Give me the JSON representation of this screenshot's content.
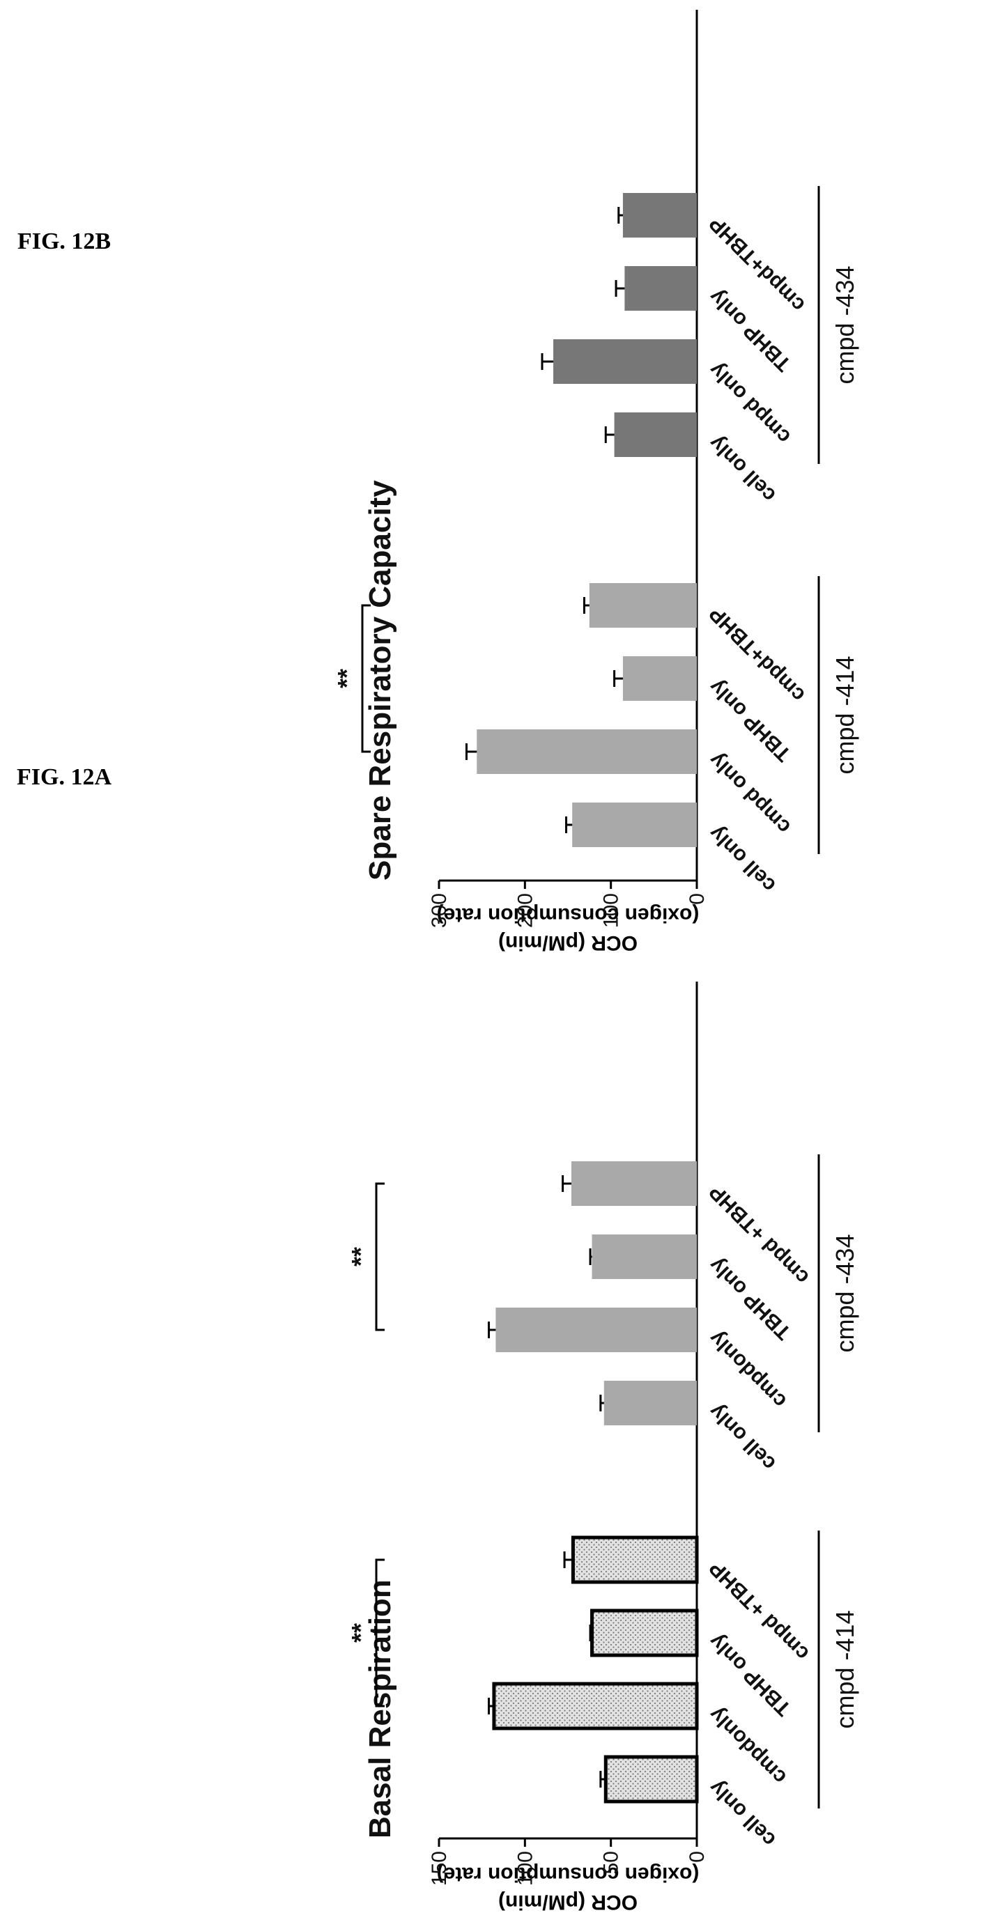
{
  "figures": [
    {
      "label": "FIG. 12A"
    },
    {
      "label": "FIG. 12B"
    }
  ],
  "chart_data": [
    {
      "type": "bar",
      "title": "Basal Respiration",
      "ylabel": "OCR (pM/min)",
      "ylabel2": "(oxigen consumption rate)",
      "ylim": [
        0,
        150
      ],
      "yticks": [
        0,
        50,
        100,
        150
      ],
      "categories": [
        "cell only",
        "cmpdonly",
        "TBHP only",
        "cmpd +TBHP",
        "cell only",
        "cmpdonly",
        "TBHP only",
        "cmpd +TBHP"
      ],
      "values": [
        53,
        118,
        61,
        72,
        54,
        117,
        61,
        73
      ],
      "errors": [
        3,
        3,
        1,
        5,
        2,
        4,
        1,
        5
      ],
      "groups": [
        {
          "name": "cmpd -414",
          "from": 0,
          "to": 3
        },
        {
          "name": "cmpd -434",
          "from": 4,
          "to": 7
        }
      ],
      "significance": [
        {
          "label": "**",
          "from": 1,
          "to": 3
        },
        {
          "label": "**",
          "from": 5,
          "to": 7
        }
      ],
      "colors": {
        "dotted_fill": "#dcdcdc",
        "bar_gray": "#a9a9a9"
      }
    },
    {
      "type": "bar",
      "title": "Spare Respiratory Capacity",
      "ylabel": "OCR (pM/min)",
      "ylabel2": "(oxigen consumption rate)",
      "ylim": [
        0,
        300
      ],
      "yticks": [
        0,
        100,
        200,
        300
      ],
      "categories": [
        "cell only",
        "cmpd only",
        "TBHP only",
        "cmpd+TBHP",
        "cell only",
        "cmpd only",
        "TBHP only",
        "cmpd+TBHP"
      ],
      "values": [
        145,
        256,
        86,
        125,
        96,
        167,
        84,
        86
      ],
      "errors": [
        7,
        12,
        10,
        6,
        10,
        13,
        10,
        5
      ],
      "groups": [
        {
          "name": "cmpd -414",
          "from": 0,
          "to": 3
        },
        {
          "name": "cmpd -434",
          "from": 4,
          "to": 7
        }
      ],
      "significance": [
        {
          "label": "**",
          "from": 1,
          "to": 3
        }
      ],
      "colors": {
        "light_gray": "#a9a9a9",
        "dark_gray": "#777777"
      }
    }
  ]
}
